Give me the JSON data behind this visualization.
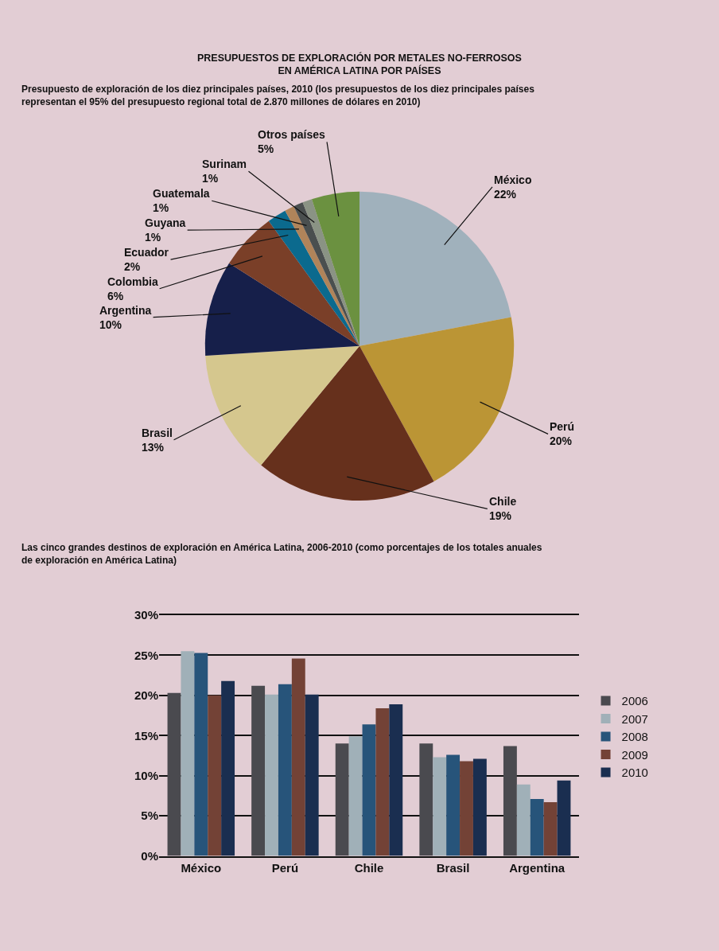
{
  "chart_data": [
    {
      "type": "pie",
      "title": "PRESUPUESTOS DE EXPLORACIÓN POR METALES NO-FERROSOS\nEN AMÉRICA LATINA POR PAÍSES",
      "subtitle": "Presupuesto de exploración de los diez principales países, 2010 (los presupuestos de los diez principales países\nrepresentan el 95% del presupuesto regional total de 2.870 millones de dólares en 2010)",
      "categories": [
        "México",
        "Perú",
        "Chile",
        "Brasil",
        "Argentina",
        "Colombia",
        "Ecuador",
        "Guyana",
        "Guatemala",
        "Surinam",
        "Otros países"
      ],
      "values": [
        22,
        20,
        19,
        13,
        10,
        6,
        2,
        1,
        1,
        1,
        5
      ],
      "value_labels": [
        "22%",
        "20%",
        "19%",
        "13%",
        "10%",
        "6%",
        "2%",
        "1%",
        "1%",
        "1%",
        "5%"
      ],
      "colors": [
        "#a0b1bc",
        "#bb9535",
        "#66301c",
        "#d5c78e",
        "#161f4a",
        "#7a3f28",
        "#0b6a8e",
        "#b0845a",
        "#4a4f4f",
        "#8a9384",
        "#6b9140"
      ],
      "legend": false
    },
    {
      "type": "bar",
      "title": "Las cinco grandes destinos de exploración en América Latina, 2006-2010 (como porcentajes de los totales anuales\nde exploración en América Latina)",
      "categories": [
        "México",
        "Perú",
        "Chile",
        "Brasil",
        "Argentina"
      ],
      "series": [
        {
          "name": "2006",
          "color": "#4a4a4f",
          "values": [
            20.3,
            21.2,
            14.0,
            14.0,
            13.7
          ]
        },
        {
          "name": "2007",
          "color": "#a0b0b8",
          "values": [
            25.5,
            20.1,
            14.9,
            12.3,
            8.9
          ]
        },
        {
          "name": "2008",
          "color": "#27547a",
          "values": [
            25.3,
            21.4,
            16.4,
            12.6,
            7.1
          ]
        },
        {
          "name": "2009",
          "color": "#734236",
          "values": [
            20.0,
            24.6,
            18.4,
            11.8,
            6.7
          ]
        },
        {
          "name": "2010",
          "color": "#1a2e50",
          "values": [
            21.8,
            20.1,
            18.9,
            12.1,
            9.4
          ]
        }
      ],
      "ylim": [
        0,
        30
      ],
      "yticks": [
        {
          "value": 0,
          "label": "0%"
        },
        {
          "value": 5,
          "label": "5%"
        },
        {
          "value": 10,
          "label": "10%"
        },
        {
          "value": 15,
          "label": "15%"
        },
        {
          "value": 20,
          "label": "20%"
        },
        {
          "value": 25,
          "label": "25%"
        },
        {
          "value": 30,
          "label": "30%"
        }
      ],
      "grid": "y",
      "legend": "right"
    }
  ]
}
